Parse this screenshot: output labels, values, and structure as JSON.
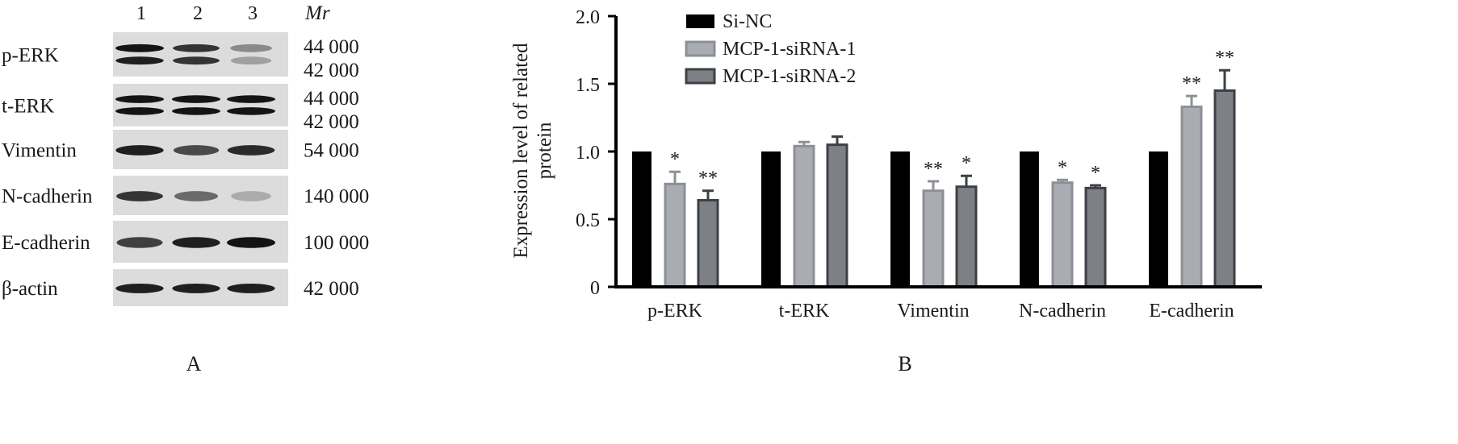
{
  "panel_a": {
    "lanes": [
      "1",
      "2",
      "3"
    ],
    "mr_header": "Mr",
    "panel_label": "A",
    "rows": [
      {
        "label": "p-ERK",
        "mr": [
          "44 000",
          "42 000"
        ],
        "bands": [
          [
            1.0,
            0.95
          ],
          [
            0.85,
            0.85
          ],
          [
            0.45,
            0.35
          ]
        ]
      },
      {
        "label": "t-ERK",
        "mr": [
          "44 000",
          "42 000"
        ],
        "bands": [
          [
            1.0,
            1.0
          ],
          [
            1.0,
            1.0
          ],
          [
            1.0,
            1.0
          ]
        ]
      },
      {
        "label": "Vimentin",
        "mr": [
          "54 000"
        ],
        "bands": [
          [
            0.95
          ],
          [
            0.75
          ],
          [
            0.9
          ]
        ]
      },
      {
        "label": "N-cadherin",
        "mr": [
          "140 000"
        ],
        "bands": [
          [
            0.85
          ],
          [
            0.6
          ],
          [
            0.3
          ]
        ]
      },
      {
        "label": "E-cadherin",
        "mr": [
          "100 000"
        ],
        "bands": [
          [
            0.8
          ],
          [
            0.95
          ],
          [
            1.0
          ]
        ]
      },
      {
        "label": "β-actin",
        "mr": [
          "42 000"
        ],
        "bands": [
          [
            0.95
          ],
          [
            0.95
          ],
          [
            0.95
          ]
        ]
      }
    ]
  },
  "chart_data": {
    "type": "bar",
    "panel_label": "B",
    "ylabel": "Expression level of related protein",
    "ylabel_lines": [
      "Expression level of related",
      "protein"
    ],
    "ylim": [
      0,
      2.0
    ],
    "yticks": [
      "0",
      "0.5",
      "1.0",
      "1.5",
      "2.0"
    ],
    "categories": [
      "p-ERK",
      "t-ERK",
      "Vimentin",
      "N-cadherin",
      "E-cadherin"
    ],
    "legend_position": "top-left",
    "series": [
      {
        "name": "Si-NC",
        "color": "#000000",
        "values": [
          1.0,
          1.0,
          1.0,
          1.0,
          1.0
        ],
        "errors": [
          0,
          0,
          0,
          0,
          0
        ],
        "annotations": [
          "",
          "",
          "",
          "",
          ""
        ]
      },
      {
        "name": "MCP-1-siRNA-1",
        "color": "#a9adb3",
        "values": [
          0.76,
          1.04,
          0.71,
          0.77,
          1.33
        ],
        "errors": [
          0.09,
          0.03,
          0.07,
          0.02,
          0.08
        ],
        "annotations": [
          "*",
          "",
          "**",
          "*",
          "**"
        ]
      },
      {
        "name": "MCP-1-siRNA-2",
        "color": "#7d8186",
        "values": [
          0.64,
          1.05,
          0.74,
          0.73,
          1.45
        ],
        "errors": [
          0.07,
          0.06,
          0.08,
          0.02,
          0.15
        ],
        "annotations": [
          "**",
          "",
          "*",
          "*",
          "**"
        ]
      }
    ]
  }
}
